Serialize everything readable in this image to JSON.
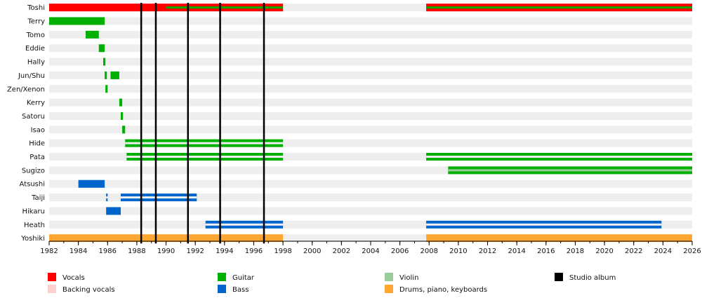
{
  "chart_data": {
    "type": "timeline",
    "title": "",
    "xlabel": "",
    "ylabel": "",
    "xlim": [
      1982,
      2026
    ],
    "x_ticks": [
      1982,
      1984,
      1986,
      1988,
      1990,
      1992,
      1994,
      1996,
      1998,
      2000,
      2002,
      2004,
      2006,
      2008,
      2010,
      2012,
      2014,
      2016,
      2018,
      2020,
      2022,
      2024,
      2026
    ],
    "grid": "alternating row bands",
    "legend_position": "bottom",
    "colors": {
      "vocals": "#ff0000",
      "backing": "#ffd0d0",
      "guitar": "#00b000",
      "bass": "#0066cc",
      "violin": "#99cc99",
      "drums": "#ffa733",
      "album": "#000000",
      "band_light": "#eeeeee"
    },
    "members": [
      {
        "name": "Toshi",
        "bars": [
          {
            "role": "vocals",
            "start": 1982,
            "end": 1998
          },
          {
            "role": "vocals",
            "start": 2007.8,
            "end": 2026
          }
        ],
        "stripes": [
          {
            "role": "guitar",
            "start": 1990,
            "end": 1998
          },
          {
            "role": "guitar",
            "start": 2007.8,
            "end": 2026
          }
        ]
      },
      {
        "name": "Terry",
        "bars": [
          {
            "role": "guitar",
            "start": 1982,
            "end": 1985.8
          }
        ],
        "stripes": []
      },
      {
        "name": "Tomo",
        "bars": [
          {
            "role": "guitar",
            "start": 1984.5,
            "end": 1985.4
          }
        ],
        "stripes": []
      },
      {
        "name": "Eddie",
        "bars": [
          {
            "role": "guitar",
            "start": 1985.4,
            "end": 1985.8
          }
        ],
        "stripes": []
      },
      {
        "name": "Hally",
        "bars": [
          {
            "role": "guitar",
            "start": 1985.7,
            "end": 1985.85
          }
        ],
        "stripes": []
      },
      {
        "name": "Jun/Shu",
        "bars": [
          {
            "role": "guitar",
            "start": 1985.8,
            "end": 1985.95
          },
          {
            "role": "guitar",
            "start": 1986.2,
            "end": 1986.8
          }
        ],
        "stripes": []
      },
      {
        "name": "Zen/Xenon",
        "bars": [
          {
            "role": "guitar",
            "start": 1985.85,
            "end": 1986
          }
        ],
        "stripes": []
      },
      {
        "name": "Kerry",
        "bars": [
          {
            "role": "guitar",
            "start": 1986.8,
            "end": 1987
          }
        ],
        "stripes": []
      },
      {
        "name": "Satoru",
        "bars": [
          {
            "role": "guitar",
            "start": 1986.9,
            "end": 1987.05
          }
        ],
        "stripes": []
      },
      {
        "name": "Isao",
        "bars": [
          {
            "role": "guitar",
            "start": 1987,
            "end": 1987.2
          }
        ],
        "stripes": []
      },
      {
        "name": "Hide",
        "bars": [
          {
            "role": "guitar",
            "start": 1987.2,
            "end": 1998
          }
        ],
        "stripes": [
          {
            "role": "band_light",
            "start": 1987.2,
            "end": 1998
          }
        ]
      },
      {
        "name": "Pata",
        "bars": [
          {
            "role": "guitar",
            "start": 1987.3,
            "end": 1998
          },
          {
            "role": "guitar",
            "start": 2007.8,
            "end": 2026
          }
        ],
        "stripes": [
          {
            "role": "band_light",
            "start": 1987.3,
            "end": 1998
          },
          {
            "role": "band_light",
            "start": 2007.8,
            "end": 2026
          }
        ]
      },
      {
        "name": "Sugizo",
        "bars": [
          {
            "role": "guitar",
            "start": 2009.3,
            "end": 2026
          }
        ],
        "stripes": [
          {
            "role": "violin",
            "start": 2009.3,
            "end": 2026
          }
        ]
      },
      {
        "name": "Atsushi",
        "bars": [
          {
            "role": "bass",
            "start": 1984,
            "end": 1985.8
          }
        ],
        "stripes": []
      },
      {
        "name": "Taiji",
        "bars": [
          {
            "role": "bass",
            "start": 1985.9,
            "end": 1986
          },
          {
            "role": "bass",
            "start": 1986.9,
            "end": 1992.1
          }
        ],
        "stripes": [
          {
            "role": "band_light",
            "start": 1985.9,
            "end": 1986
          },
          {
            "role": "band_light",
            "start": 1986.9,
            "end": 1992.1
          }
        ]
      },
      {
        "name": "Hikaru",
        "bars": [
          {
            "role": "bass",
            "start": 1985.9,
            "end": 1986.9
          }
        ],
        "stripes": []
      },
      {
        "name": "Heath",
        "bars": [
          {
            "role": "bass",
            "start": 1992.7,
            "end": 1998
          },
          {
            "role": "bass",
            "start": 2007.8,
            "end": 2023.9
          }
        ],
        "stripes": [
          {
            "role": "band_light",
            "start": 1992.7,
            "end": 1998
          },
          {
            "role": "band_light",
            "start": 2007.8,
            "end": 2023.9
          }
        ]
      },
      {
        "name": "Yoshiki",
        "bars": [
          {
            "role": "drums",
            "start": 1982,
            "end": 1998
          },
          {
            "role": "drums",
            "start": 2007.8,
            "end": 2026
          }
        ],
        "stripes": []
      }
    ],
    "albums": [
      1988.3,
      1989.3,
      1991.5,
      1993.7,
      1996.7
    ],
    "legend": [
      {
        "label": "Vocals",
        "role": "vocals"
      },
      {
        "label": "Backing vocals",
        "role": "backing"
      },
      {
        "label": "Guitar",
        "role": "guitar"
      },
      {
        "label": "Bass",
        "role": "bass"
      },
      {
        "label": "Violin",
        "role": "violin"
      },
      {
        "label": "Drums, piano, keyboards",
        "role": "drums"
      },
      {
        "label": "Studio album",
        "role": "album"
      }
    ]
  }
}
